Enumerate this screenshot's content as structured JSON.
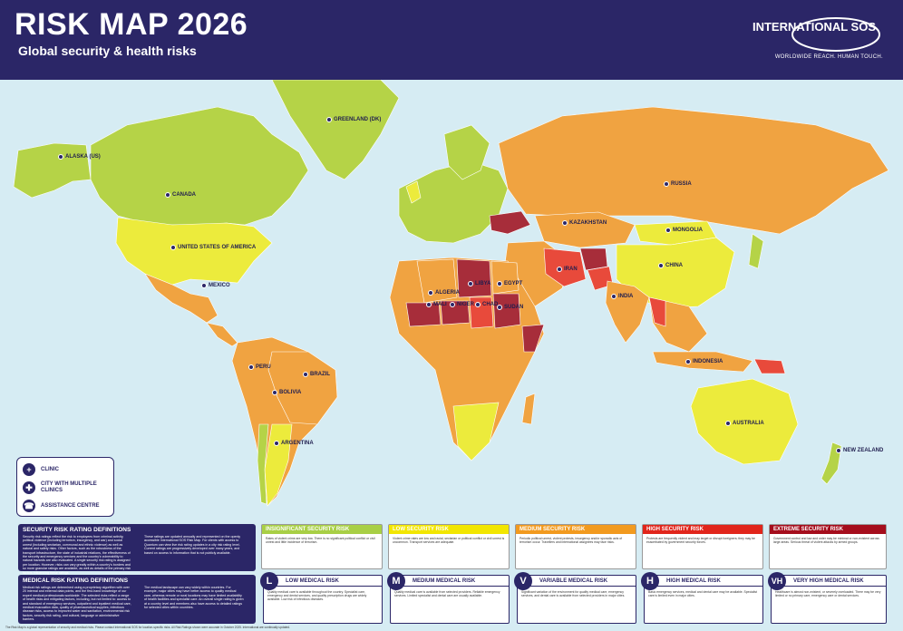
{
  "header": {
    "title": "RISK MAP 2026",
    "subtitle": "Global security & health risks",
    "logo_name": "INTERNATIONAL SOS",
    "logo_tagline": "WORLDWIDE REACH. HUMAN TOUCH."
  },
  "colors": {
    "navy": "#2b2667",
    "ocean": "#d6ecf3",
    "insignificant": "#a8cf45",
    "low": "#f2e600",
    "medium": "#f29a1e",
    "high": "#e1251b",
    "extreme": "#a50d1c",
    "land_green": "#b5d347",
    "land_yellow": "#eceb3c",
    "land_orange": "#f0a341",
    "land_red": "#e84a3b",
    "land_darkred": "#a72d3a"
  },
  "map_labels": [
    {
      "text": "ALASKA (US)",
      "id": "alaska"
    },
    {
      "text": "CANADA",
      "id": "canada"
    },
    {
      "text": "GREENLAND (DK)",
      "id": "greenland"
    },
    {
      "text": "UNITED STATES OF AMERICA",
      "id": "usa"
    },
    {
      "text": "MEXICO",
      "id": "mexico"
    },
    {
      "text": "PERU",
      "id": "peru"
    },
    {
      "text": "BRAZIL",
      "id": "brazil"
    },
    {
      "text": "BOLIVIA",
      "id": "bolivia"
    },
    {
      "text": "ARGENTINA",
      "id": "argentina"
    },
    {
      "text": "RUSSIA",
      "id": "russia"
    },
    {
      "text": "KAZAKHSTAN",
      "id": "kazakhstan"
    },
    {
      "text": "MONGOLIA",
      "id": "mongolia"
    },
    {
      "text": "CHINA",
      "id": "china"
    },
    {
      "text": "INDIA",
      "id": "india"
    },
    {
      "text": "IRAN",
      "id": "iran"
    },
    {
      "text": "EGYPT",
      "id": "egypt"
    },
    {
      "text": "LIBYA",
      "id": "libya"
    },
    {
      "text": "ALGERIA",
      "id": "algeria"
    },
    {
      "text": "MALI",
      "id": "mali"
    },
    {
      "text": "NIGER",
      "id": "niger"
    },
    {
      "text": "CHAD",
      "id": "chad"
    },
    {
      "text": "SUDAN",
      "id": "sudan"
    },
    {
      "text": "INDONESIA",
      "id": "indonesia"
    },
    {
      "text": "AUSTRALIA",
      "id": "australia"
    },
    {
      "text": "NEW ZEALAND",
      "id": "newzealand"
    }
  ],
  "legend": {
    "clinic": "CLINIC",
    "city_multiple_clinics": "CITY WITH MULTIPLE CLINICS",
    "assistance_centre": "ASSISTANCE CENTRE"
  },
  "security_def": {
    "title": "SECURITY RISK RATING DEFINITIONS",
    "text": "Security risk ratings reflect the risk to employees from criminal activity, political violence (including terrorism, insurgency, and war) and social unrest (including sectarian, communal and ethnic violence) as well as natural and safety risks. Other factors, such as the robustness of the transport infrastructure, the state of industrial relations, the effectiveness of the security and emergency services and the country's vulnerability to natural hazards are also evaluated. A single security risk rating is assigned per location. However, risks can vary greatly within a country's borders and so more granular ratings are available, as well as details of the primary risk factors influencing these ratings.",
    "text2": "These ratings are updated annually and represented on the openly accessible International SOS Risk Map. For clients with access to Quantum can view live risk rating updates in a city risk rating level. Current ratings are progressively developed over many years, and based on access to information that is not publicly available."
  },
  "medical_def": {
    "title": "MEDICAL RISK RATING DEFINITIONS",
    "text": "Medical risk ratings are determined using a proprietary algorithm with over 20 internal and external data points, and the first-hand knowledge of our expert medical professionals worldwide. The selected risks reflect a range of health risks and mitigating factors, including, but not limited to: access to and standard of emergency services, outpatient and inpatient medical care, medical evacuation data, quality of pharmaceutical supplies, infectious disease risks, access to improved water and sanitation, environmental risk factors, security risk rating, and cultural, language or administrative barriers.",
    "text2": "The medical landscape can vary widely within countries. For example, major cities may have better access to quality medical care, whereas remote or rural locations may have limited availability of health facilities and specialist care. An overall single rating is given at a country level and members also have access to detailed ratings for selected cities within countries."
  },
  "security_levels": [
    {
      "title": "INSIGNIFICANT SECURITY RISK",
      "color": "#a8cf45",
      "text": "Rates of violent crime are very low. There is no significant political conflict or civil unrest and little incidence of terrorism."
    },
    {
      "title": "LOW SECURITY RISK",
      "color": "#f2e600",
      "text": "Violent crime rates are low and racial, sectarian or political conflict or civil unrest is uncommon. Transport services are adequate."
    },
    {
      "title": "MEDIUM SECURITY RISK",
      "color": "#f29a1e",
      "text": "Periodic political unrest, violent protests, insurgency and/or sporadic acts of terrorism occur. Travellers and international assignees may face risks."
    },
    {
      "title": "HIGH SECURITY RISK",
      "color": "#e1251b",
      "text": "Protests are frequently violent and may target or disrupt foreigners; they may be exacerbated by government security forces."
    },
    {
      "title": "EXTREME SECURITY RISK",
      "color": "#a50d1c",
      "text": "Government control and law and order may be minimal or non-existent across large areas. Serious threat of violent attacks by armed groups."
    }
  ],
  "medical_levels": [
    {
      "badge": "L",
      "title": "LOW MEDICAL RISK",
      "text": "Quality medical care is available throughout the country. Specialist care, emergency and dental services, and quality prescription drugs are widely available. Low risk of infectious diseases."
    },
    {
      "badge": "M",
      "title": "MEDIUM MEDICAL RISK",
      "text": "Quality medical care is available from selected providers. Reliable emergency services. Limited specialist and dental care are usually available."
    },
    {
      "badge": "V",
      "title": "VARIABLE MEDICAL RISK",
      "text": "Significant variation of the environment for quality medical care, emergency services, and dental care is available from selected providers in major cities."
    },
    {
      "badge": "H",
      "title": "HIGH MEDICAL RISK",
      "text": "Basic emergency services, medical and dental care may be available. Specialist care is limited even in major cities."
    },
    {
      "badge": "VH",
      "title": "VERY HIGH MEDICAL RISK",
      "text": "Healthcare is almost non-existent, or severely overloaded. There may be very limited or no primary care, emergency care or dental services."
    }
  ],
  "footer": "The Risk Map is a global representation of security and medical risks. Please contact International SOS for location-specific risks. All Risk Ratings shown were accurate in October 2025. International are continually updated."
}
